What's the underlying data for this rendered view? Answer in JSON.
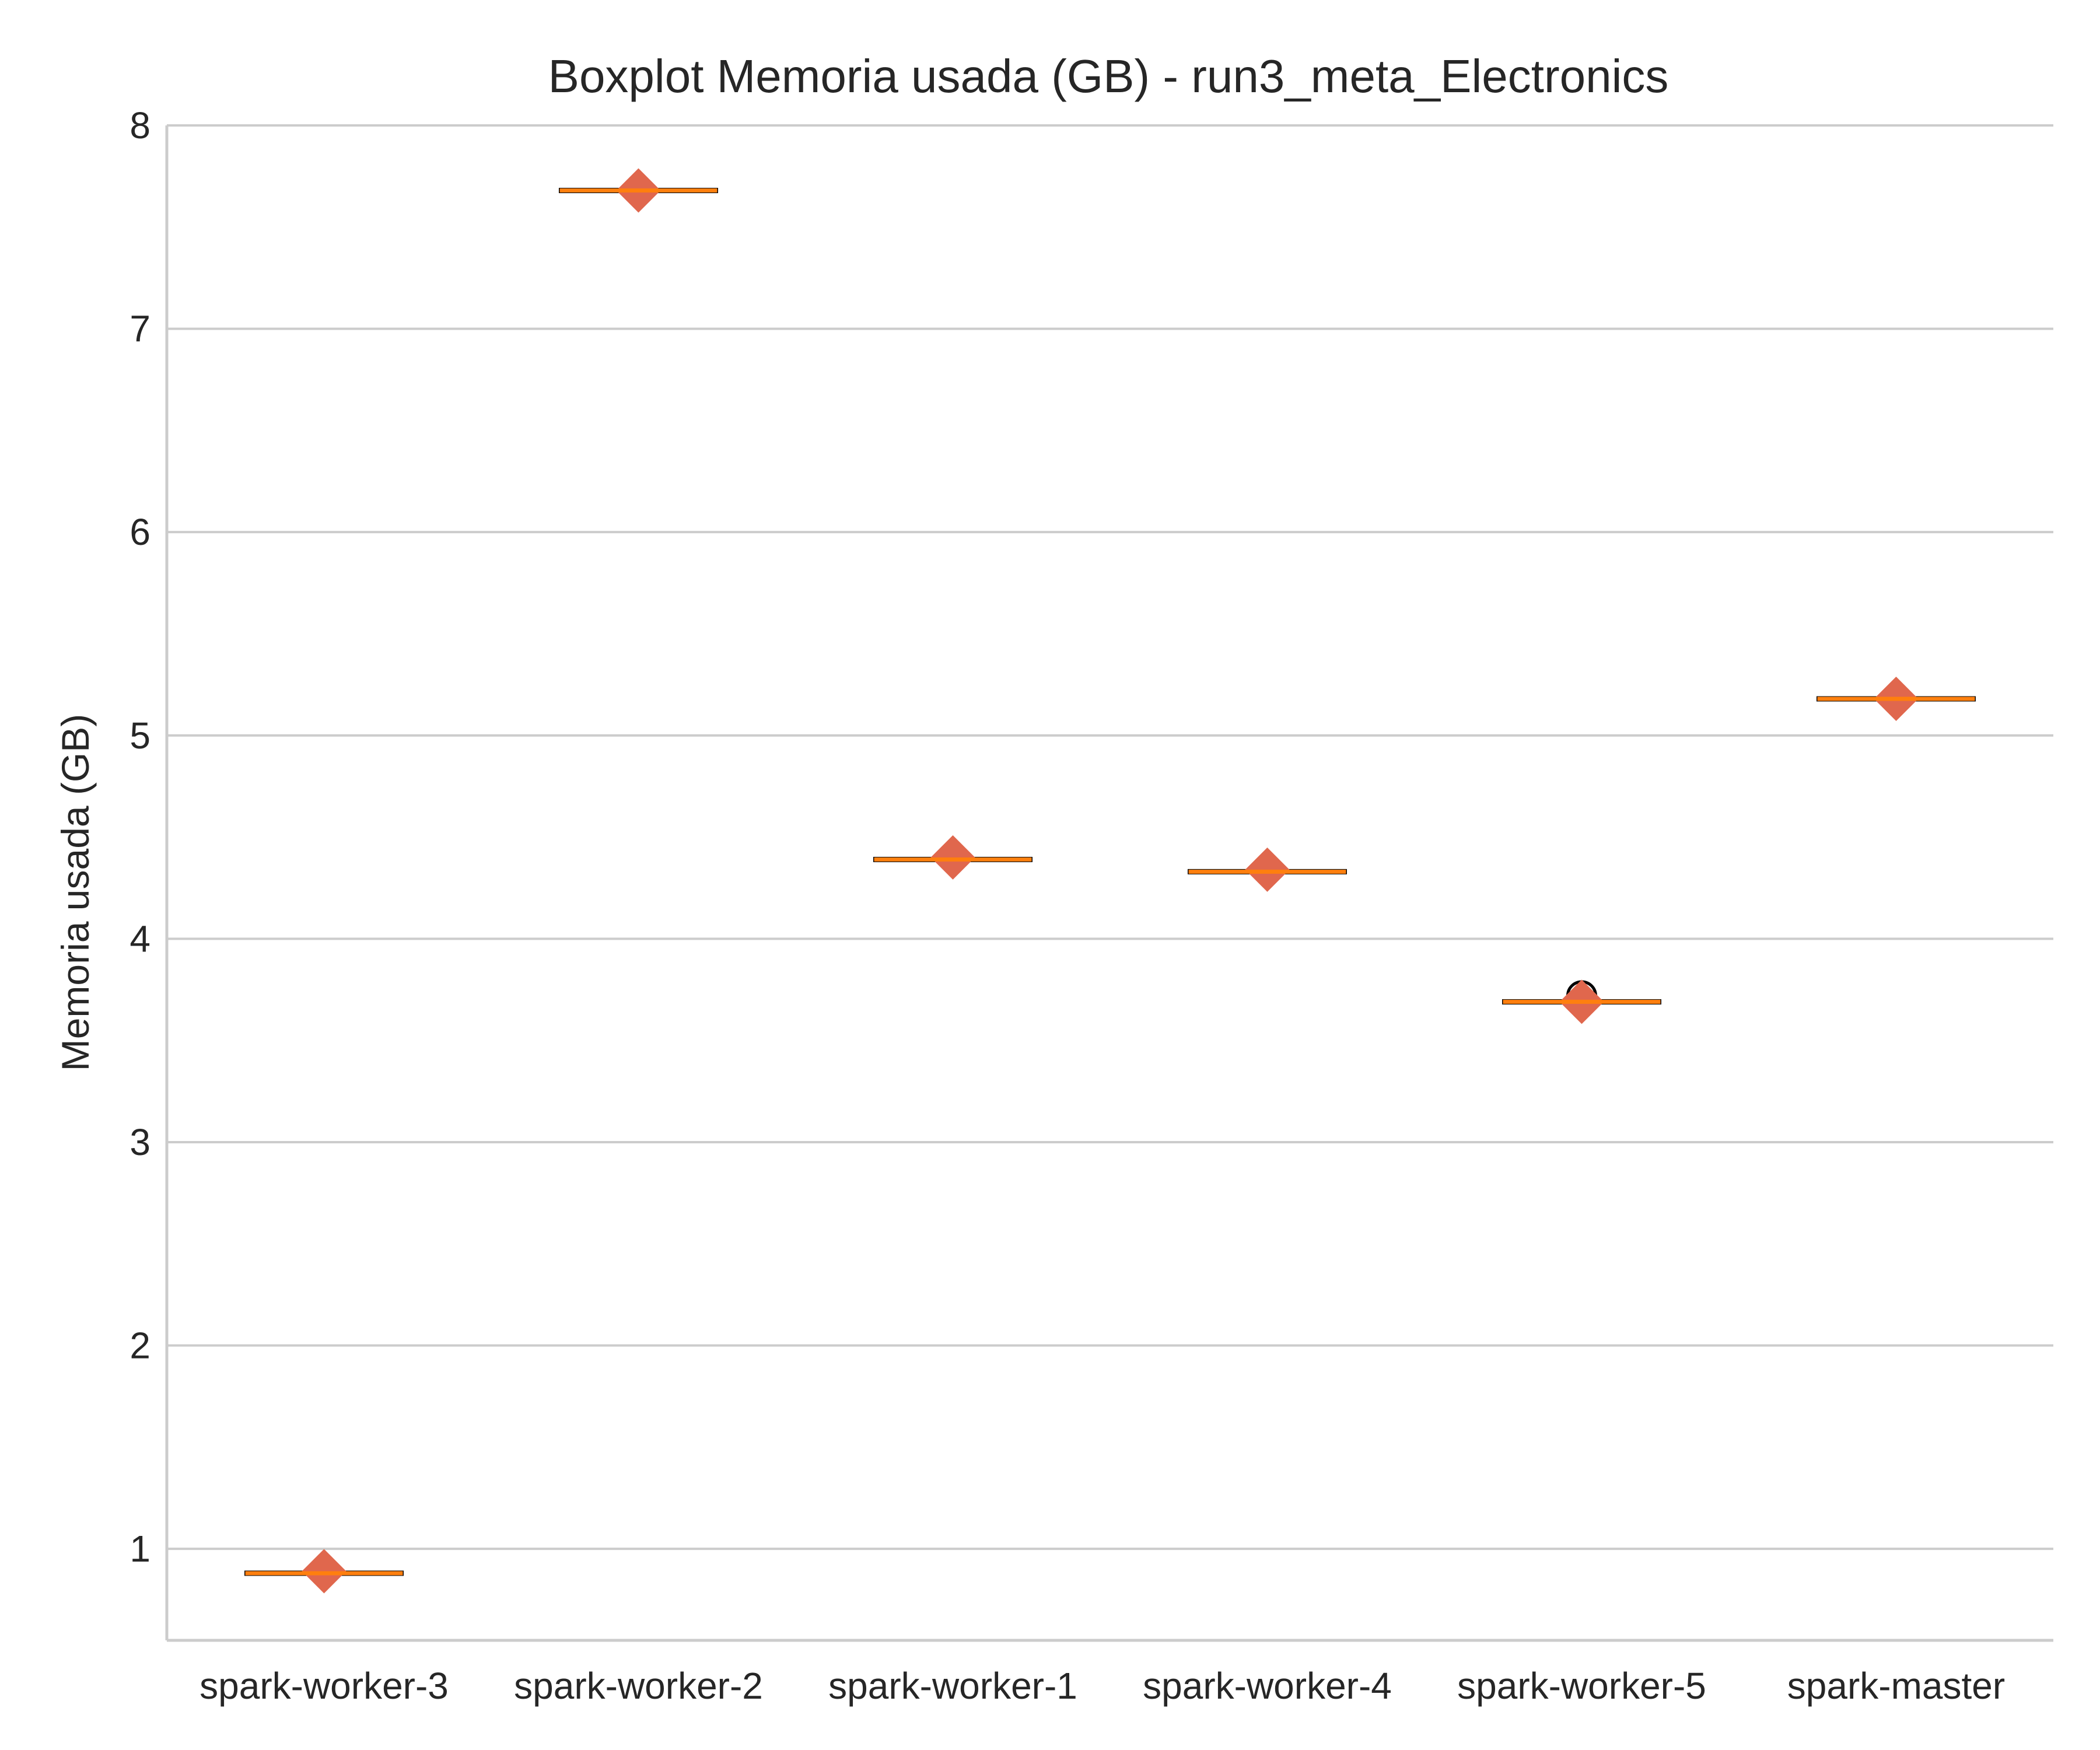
{
  "chart_data": {
    "type": "box",
    "title": "Boxplot Memoria usada (GB) - run3_meta_Electronics",
    "xlabel": "",
    "ylabel": "Memoria usada (GB)",
    "ylim": [
      0.55,
      8.0
    ],
    "yticks": [
      1,
      2,
      3,
      4,
      5,
      6,
      7,
      8
    ],
    "grid": "y",
    "categories": [
      "spark-worker-3",
      "spark-worker-2",
      "spark-worker-1",
      "spark-worker-4",
      "spark-worker-5",
      "spark-master"
    ],
    "medians": [
      0.88,
      7.68,
      4.39,
      4.33,
      3.69,
      5.18
    ],
    "means": [
      0.89,
      7.68,
      4.4,
      4.34,
      3.69,
      5.18
    ],
    "outliers": [
      [],
      [],
      [],
      [],
      [
        3.72
      ],
      []
    ],
    "colors": {
      "median": "#ff7f0e",
      "mean_marker": "#e0674d",
      "grid": "#cccccc",
      "axis": "#cccccc",
      "text": "#262626"
    }
  }
}
